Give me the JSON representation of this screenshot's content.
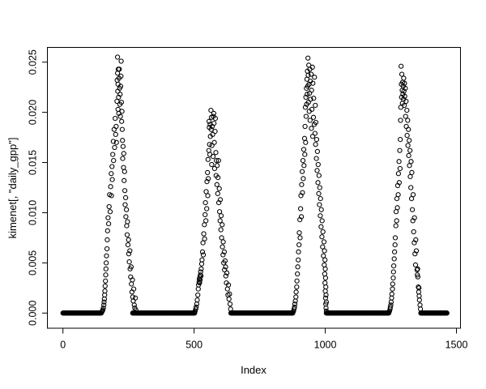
{
  "figure": {
    "background": "#ffffff",
    "plot_color": "#000000"
  },
  "chart_data": {
    "type": "scatter",
    "title": "",
    "xlabel": "Index",
    "ylabel": "kimenet[, \"daily_gpp\"]",
    "xlim": [
      0,
      1500
    ],
    "ylim": [
      0,
      0.025
    ],
    "x_ticks": [
      0,
      500,
      1000,
      1500
    ],
    "x_tick_labels": [
      "0",
      "500",
      "1000",
      "1500"
    ],
    "y_ticks": [
      0,
      0.005,
      0.01,
      0.015,
      0.02,
      0.025
    ],
    "y_tick_labels": [
      "0.000",
      "0.005",
      "0.010",
      "0.015",
      "0.020",
      "0.025"
    ],
    "marker": "open-circle",
    "grid": false,
    "legend": null,
    "zero_runs": [
      [
        0,
        146
      ],
      [
        266,
        502
      ],
      [
        640,
        877
      ],
      [
        1004,
        1242
      ],
      [
        1364,
        1464
      ]
    ],
    "zero_run_step": 2,
    "points": [
      [
        148,
        0.0001
      ],
      [
        150,
        0.0002
      ],
      [
        152,
        0.0003
      ],
      [
        154,
        0.0005
      ],
      [
        156,
        0.0008
      ],
      [
        157,
        0.0011
      ],
      [
        158,
        0.0014
      ],
      [
        159,
        0.0018
      ],
      [
        160,
        0.0022
      ],
      [
        161,
        0.0027
      ],
      [
        162,
        0.0032
      ],
      [
        163,
        0.0038
      ],
      [
        164,
        0.0044
      ],
      [
        165,
        0.005
      ],
      [
        166,
        0.0057
      ],
      [
        168,
        0.0064
      ],
      [
        169,
        0.0073
      ],
      [
        170,
        0.0082
      ],
      [
        172,
        0.0095
      ],
      [
        174,
        0.0089
      ],
      [
        176,
        0.0106
      ],
      [
        178,
        0.0118
      ],
      [
        180,
        0.0101
      ],
      [
        182,
        0.0126
      ],
      [
        184,
        0.0139
      ],
      [
        185,
        0.0117
      ],
      [
        187,
        0.0146
      ],
      [
        188,
        0.0133
      ],
      [
        190,
        0.0158
      ],
      [
        192,
        0.0171
      ],
      [
        193,
        0.0152
      ],
      [
        195,
        0.0183
      ],
      [
        197,
        0.0165
      ],
      [
        199,
        0.0194
      ],
      [
        201,
        0.0178
      ],
      [
        203,
        0.0186
      ],
      [
        204,
        0.017
      ],
      [
        206,
        0.0211
      ],
      [
        207,
        0.0232
      ],
      [
        208,
        0.0255
      ],
      [
        208,
        0.0239
      ],
      [
        209,
        0.0221
      ],
      [
        210,
        0.0228
      ],
      [
        210,
        0.0203
      ],
      [
        211,
        0.0243
      ],
      [
        212,
        0.0215
      ],
      [
        213,
        0.0199
      ],
      [
        214,
        0.0234
      ],
      [
        215,
        0.0243
      ],
      [
        216,
        0.0224
      ],
      [
        217,
        0.0208
      ],
      [
        218,
        0.0218
      ],
      [
        219,
        0.0196
      ],
      [
        220,
        0.0226
      ],
      [
        221,
        0.0236
      ],
      [
        222,
        0.0251
      ],
      [
        223,
        0.021
      ],
      [
        224,
        0.0191
      ],
      [
        225,
        0.0201
      ],
      [
        226,
        0.0183
      ],
      [
        227,
        0.0172
      ],
      [
        228,
        0.0154
      ],
      [
        229,
        0.0166
      ],
      [
        231,
        0.0145
      ],
      [
        232,
        0.0159
      ],
      [
        233,
        0.0132
      ],
      [
        235,
        0.0141
      ],
      [
        236,
        0.0122
      ],
      [
        237,
        0.0108
      ],
      [
        239,
        0.0115
      ],
      [
        240,
        0.0096
      ],
      [
        242,
        0.0103
      ],
      [
        243,
        0.0087
      ],
      [
        245,
        0.0078
      ],
      [
        246,
        0.0091
      ],
      [
        248,
        0.0068
      ],
      [
        250,
        0.0073
      ],
      [
        251,
        0.0059
      ],
      [
        253,
        0.0051
      ],
      [
        255,
        0.0062
      ],
      [
        256,
        0.0044
      ],
      [
        258,
        0.0036
      ],
      [
        260,
        0.0046
      ],
      [
        261,
        0.0029
      ],
      [
        263,
        0.0021
      ],
      [
        265,
        0.0033
      ],
      [
        266,
        0.0016
      ],
      [
        268,
        0.0012
      ],
      [
        270,
        0.0024
      ],
      [
        272,
        0.0008
      ],
      [
        274,
        0.0005
      ],
      [
        276,
        0.0015
      ],
      [
        278,
        0.0003
      ],
      [
        502,
        0.0001
      ],
      [
        504,
        0.0002
      ],
      [
        506,
        0.0004
      ],
      [
        508,
        0.0006
      ],
      [
        510,
        0.0009
      ],
      [
        512,
        0.0013
      ],
      [
        514,
        0.0018
      ],
      [
        516,
        0.0024
      ],
      [
        517,
        0.0028
      ],
      [
        519,
        0.0031
      ],
      [
        520,
        0.0034
      ],
      [
        521,
        0.003
      ],
      [
        522,
        0.0036
      ],
      [
        523,
        0.0033
      ],
      [
        524,
        0.0038
      ],
      [
        525,
        0.0041
      ],
      [
        526,
        0.0037
      ],
      [
        527,
        0.0044
      ],
      [
        529,
        0.0049
      ],
      [
        530,
        0.0053
      ],
      [
        532,
        0.0061
      ],
      [
        534,
        0.007
      ],
      [
        535,
        0.0058
      ],
      [
        537,
        0.0079
      ],
      [
        539,
        0.0088
      ],
      [
        540,
        0.0074
      ],
      [
        542,
        0.0098
      ],
      [
        543,
        0.011
      ],
      [
        545,
        0.0092
      ],
      [
        546,
        0.0121
      ],
      [
        548,
        0.0104
      ],
      [
        549,
        0.0131
      ],
      [
        551,
        0.014
      ],
      [
        552,
        0.0117
      ],
      [
        553,
        0.0153
      ],
      [
        554,
        0.0134
      ],
      [
        556,
        0.0162
      ],
      [
        557,
        0.0191
      ],
      [
        558,
        0.0185
      ],
      [
        559,
        0.0168
      ],
      [
        560,
        0.0158
      ],
      [
        561,
        0.0188
      ],
      [
        562,
        0.0176
      ],
      [
        564,
        0.0202
      ],
      [
        565,
        0.0183
      ],
      [
        566,
        0.0195
      ],
      [
        567,
        0.0148
      ],
      [
        568,
        0.0167
      ],
      [
        569,
        0.0186
      ],
      [
        571,
        0.0178
      ],
      [
        572,
        0.0156
      ],
      [
        573,
        0.0196
      ],
      [
        575,
        0.0199
      ],
      [
        576,
        0.0189
      ],
      [
        577,
        0.017
      ],
      [
        578,
        0.0144
      ],
      [
        580,
        0.0181
      ],
      [
        581,
        0.0194
      ],
      [
        583,
        0.016
      ],
      [
        584,
        0.0137
      ],
      [
        585,
        0.0152
      ],
      [
        587,
        0.0128
      ],
      [
        588,
        0.0147
      ],
      [
        590,
        0.0119
      ],
      [
        591,
        0.0135
      ],
      [
        593,
        0.0152
      ],
      [
        594,
        0.011
      ],
      [
        596,
        0.0124
      ],
      [
        597,
        0.0101
      ],
      [
        599,
        0.0092
      ],
      [
        600,
        0.0113
      ],
      [
        602,
        0.0083
      ],
      [
        603,
        0.0097
      ],
      [
        605,
        0.0075
      ],
      [
        607,
        0.0088
      ],
      [
        608,
        0.0066
      ],
      [
        610,
        0.0058
      ],
      [
        611,
        0.0071
      ],
      [
        613,
        0.005
      ],
      [
        615,
        0.0061
      ],
      [
        616,
        0.0043
      ],
      [
        618,
        0.0052
      ],
      [
        620,
        0.0046
      ],
      [
        621,
        0.0037
      ],
      [
        623,
        0.003
      ],
      [
        625,
        0.004
      ],
      [
        627,
        0.0024
      ],
      [
        629,
        0.0018
      ],
      [
        631,
        0.0028
      ],
      [
        633,
        0.0014
      ],
      [
        635,
        0.0019
      ],
      [
        637,
        0.0009
      ],
      [
        639,
        0.0004
      ],
      [
        877,
        0.0001
      ],
      [
        879,
        0.0002
      ],
      [
        881,
        0.0004
      ],
      [
        883,
        0.0006
      ],
      [
        884,
        0.0009
      ],
      [
        886,
        0.0012
      ],
      [
        888,
        0.0016
      ],
      [
        889,
        0.0021
      ],
      [
        891,
        0.0026
      ],
      [
        892,
        0.0032
      ],
      [
        894,
        0.0039
      ],
      [
        895,
        0.0046
      ],
      [
        897,
        0.0053
      ],
      [
        898,
        0.0061
      ],
      [
        900,
        0.0068
      ],
      [
        901,
        0.008
      ],
      [
        903,
        0.0093
      ],
      [
        904,
        0.0075
      ],
      [
        906,
        0.0104
      ],
      [
        907,
        0.0117
      ],
      [
        909,
        0.0096
      ],
      [
        910,
        0.0128
      ],
      [
        912,
        0.0141
      ],
      [
        913,
        0.012
      ],
      [
        915,
        0.0152
      ],
      [
        916,
        0.0134
      ],
      [
        918,
        0.0163
      ],
      [
        919,
        0.0147
      ],
      [
        921,
        0.0174
      ],
      [
        922,
        0.0158
      ],
      [
        923,
        0.0186
      ],
      [
        924,
        0.0205
      ],
      [
        925,
        0.017
      ],
      [
        926,
        0.0215
      ],
      [
        927,
        0.0196
      ],
      [
        928,
        0.0224
      ],
      [
        929,
        0.0208
      ],
      [
        930,
        0.0233
      ],
      [
        931,
        0.0218
      ],
      [
        932,
        0.0241
      ],
      [
        933,
        0.0226
      ],
      [
        934,
        0.0254
      ],
      [
        935,
        0.0237
      ],
      [
        936,
        0.021
      ],
      [
        937,
        0.0247
      ],
      [
        938,
        0.0228
      ],
      [
        939,
        0.0201
      ],
      [
        940,
        0.0219
      ],
      [
        941,
        0.0243
      ],
      [
        942,
        0.0192
      ],
      [
        943,
        0.0231
      ],
      [
        944,
        0.0213
      ],
      [
        946,
        0.0238
      ],
      [
        947,
        0.0184
      ],
      [
        948,
        0.0222
      ],
      [
        949,
        0.0203
      ],
      [
        951,
        0.0245
      ],
      [
        952,
        0.0176
      ],
      [
        953,
        0.0229
      ],
      [
        955,
        0.0195
      ],
      [
        956,
        0.0214
      ],
      [
        958,
        0.0188
      ],
      [
        959,
        0.0235
      ],
      [
        961,
        0.0179
      ],
      [
        962,
        0.0207
      ],
      [
        963,
        0.0168
      ],
      [
        964,
        0.019
      ],
      [
        966,
        0.0154
      ],
      [
        967,
        0.0173
      ],
      [
        969,
        0.0142
      ],
      [
        970,
        0.0161
      ],
      [
        972,
        0.013
      ],
      [
        973,
        0.0148
      ],
      [
        975,
        0.0119
      ],
      [
        976,
        0.0137
      ],
      [
        978,
        0.0108
      ],
      [
        979,
        0.0125
      ],
      [
        981,
        0.0097
      ],
      [
        982,
        0.0114
      ],
      [
        984,
        0.0086
      ],
      [
        985,
        0.0103
      ],
      [
        987,
        0.0076
      ],
      [
        988,
        0.0092
      ],
      [
        990,
        0.0066
      ],
      [
        991,
        0.0081
      ],
      [
        993,
        0.0057
      ],
      [
        995,
        0.0071
      ],
      [
        996,
        0.0048
      ],
      [
        997,
        0.0062
      ],
      [
        998,
        0.0039
      ],
      [
        999,
        0.0053
      ],
      [
        999,
        0.003
      ],
      [
        1000,
        0.0044
      ],
      [
        1000,
        0.0022
      ],
      [
        1001,
        0.0035
      ],
      [
        1001,
        0.0015
      ],
      [
        1002,
        0.0026
      ],
      [
        1002,
        0.0009
      ],
      [
        1003,
        0.0018
      ],
      [
        1003,
        0.0005
      ],
      [
        1004,
        0.0011
      ],
      [
        1004,
        0.0002
      ],
      [
        1243,
        0.0001
      ],
      [
        1245,
        0.0002
      ],
      [
        1247,
        0.0004
      ],
      [
        1248,
        0.0006
      ],
      [
        1250,
        0.0008
      ],
      [
        1251,
        0.0011
      ],
      [
        1253,
        0.0015
      ],
      [
        1254,
        0.0019
      ],
      [
        1256,
        0.0024
      ],
      [
        1257,
        0.0029
      ],
      [
        1259,
        0.0035
      ],
      [
        1260,
        0.0041
      ],
      [
        1261,
        0.0047
      ],
      [
        1263,
        0.0054
      ],
      [
        1264,
        0.0061
      ],
      [
        1266,
        0.0068
      ],
      [
        1267,
        0.0075
      ],
      [
        1269,
        0.0087
      ],
      [
        1270,
        0.0101
      ],
      [
        1272,
        0.0092
      ],
      [
        1273,
        0.0114
      ],
      [
        1275,
        0.0105
      ],
      [
        1276,
        0.0127
      ],
      [
        1278,
        0.0118
      ],
      [
        1279,
        0.0139
      ],
      [
        1281,
        0.0151
      ],
      [
        1282,
        0.013
      ],
      [
        1284,
        0.0162
      ],
      [
        1285,
        0.0144
      ],
      [
        1286,
        0.0173
      ],
      [
        1287,
        0.0192
      ],
      [
        1288,
        0.0205
      ],
      [
        1289,
        0.0246
      ],
      [
        1290,
        0.0228
      ],
      [
        1291,
        0.0215
      ],
      [
        1292,
        0.0238
      ],
      [
        1293,
        0.0222
      ],
      [
        1294,
        0.0209
      ],
      [
        1295,
        0.023
      ],
      [
        1296,
        0.0218
      ],
      [
        1297,
        0.0226
      ],
      [
        1298,
        0.0213
      ],
      [
        1299,
        0.0234
      ],
      [
        1300,
        0.0221
      ],
      [
        1301,
        0.0207
      ],
      [
        1302,
        0.0229
      ],
      [
        1303,
        0.0216
      ],
      [
        1305,
        0.0224
      ],
      [
        1306,
        0.0196
      ],
      [
        1308,
        0.0211
      ],
      [
        1309,
        0.0186
      ],
      [
        1311,
        0.0202
      ],
      [
        1312,
        0.0177
      ],
      [
        1314,
        0.0192
      ],
      [
        1315,
        0.0167
      ],
      [
        1317,
        0.0183
      ],
      [
        1318,
        0.0157
      ],
      [
        1320,
        0.0172
      ],
      [
        1321,
        0.0147
      ],
      [
        1323,
        0.0162
      ],
      [
        1324,
        0.0136
      ],
      [
        1326,
        0.0125
      ],
      [
        1327,
        0.0151
      ],
      [
        1329,
        0.0114
      ],
      [
        1330,
        0.014
      ],
      [
        1332,
        0.0103
      ],
      [
        1334,
        0.0092
      ],
      [
        1335,
        0.0118
      ],
      [
        1337,
        0.0081
      ],
      [
        1339,
        0.007
      ],
      [
        1340,
        0.0095
      ],
      [
        1342,
        0.0059
      ],
      [
        1344,
        0.0048
      ],
      [
        1345,
        0.0073
      ],
      [
        1347,
        0.0062
      ],
      [
        1350,
        0.0043
      ],
      [
        1351,
        0.0038
      ],
      [
        1352,
        0.0044
      ],
      [
        1353,
        0.0036
      ],
      [
        1355,
        0.0026
      ],
      [
        1356,
        0.0021
      ],
      [
        1357,
        0.0025
      ],
      [
        1358,
        0.0017
      ],
      [
        1359,
        0.0013
      ],
      [
        1361,
        0.0008
      ],
      [
        1363,
        0.0004
      ]
    ]
  }
}
